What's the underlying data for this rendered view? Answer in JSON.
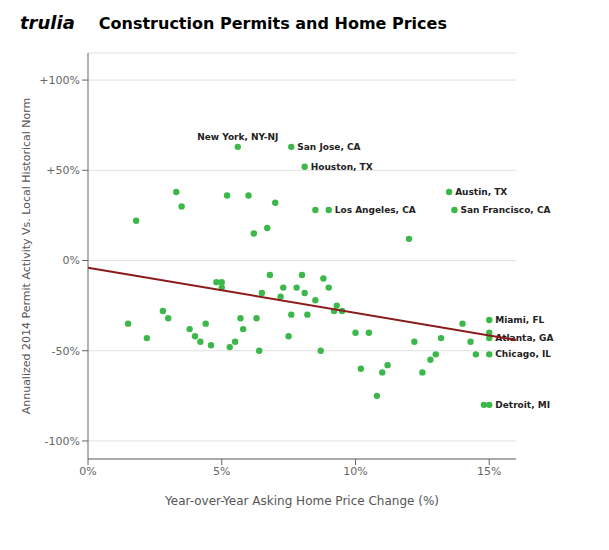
{
  "chart_data": {
    "type": "scatter",
    "title": "Construction Permits and Home Prices",
    "annotations": [
      "trulia"
    ],
    "x_label": "Year-over-Year Asking Home Price Change (%)",
    "y_label": "Annualized 2014 Permit Activity Vs. Local Historical Norm",
    "xlim": [
      0.0,
      0.16
    ],
    "ylim": [
      -1.1,
      1.15
    ],
    "xticks": [
      {
        "value": 0.0,
        "label": "0%"
      },
      {
        "value": 0.05,
        "label": "5%"
      },
      {
        "value": 0.1,
        "label": "10%"
      },
      {
        "value": 0.15,
        "label": "15%"
      }
    ],
    "yticks": [
      {
        "value": -1.0,
        "label": "-100%"
      },
      {
        "value": -0.5,
        "label": "-50%"
      },
      {
        "value": 0.0,
        "label": "0%"
      },
      {
        "value": 0.5,
        "label": "+50%"
      },
      {
        "value": 1.0,
        "label": "+100%"
      }
    ],
    "grid": "y",
    "series": [
      {
        "type": "scatter",
        "color": "#3cb84a",
        "marker": "circle",
        "x": [
          0.015,
          0.018,
          0.022,
          0.028,
          0.03,
          0.033,
          0.035,
          0.038,
          0.04,
          0.042,
          0.044,
          0.046,
          0.048,
          0.05,
          0.05,
          0.052,
          0.053,
          0.055,
          0.057,
          0.058,
          0.06,
          0.062,
          0.063,
          0.064,
          0.065,
          0.067,
          0.068,
          0.07,
          0.072,
          0.073,
          0.075,
          0.076,
          0.078,
          0.08,
          0.081,
          0.082,
          0.085,
          0.085,
          0.087,
          0.088,
          0.09,
          0.092,
          0.093,
          0.095,
          0.1,
          0.102,
          0.105,
          0.108,
          0.11,
          0.112,
          0.12,
          0.122,
          0.125,
          0.128,
          0.13,
          0.132,
          0.14,
          0.143,
          0.145,
          0.148,
          0.15
        ],
        "values": [
          -0.35,
          0.22,
          -0.43,
          -0.28,
          -0.32,
          0.38,
          0.3,
          -0.38,
          -0.42,
          -0.45,
          -0.35,
          -0.47,
          -0.12,
          -0.15,
          -0.12,
          0.36,
          -0.48,
          -0.45,
          -0.32,
          -0.38,
          0.36,
          0.15,
          -0.32,
          -0.5,
          -0.18,
          0.18,
          -0.08,
          0.32,
          -0.2,
          -0.15,
          -0.42,
          -0.3,
          -0.15,
          -0.08,
          -0.18,
          -0.3,
          -0.22,
          0.28,
          -0.5,
          -0.1,
          -0.15,
          -0.28,
          -0.25,
          -0.28,
          -0.4,
          -0.6,
          -0.4,
          -0.75,
          -0.62,
          -0.58,
          0.12,
          -0.45,
          -0.62,
          -0.55,
          -0.52,
          -0.43,
          -0.35,
          -0.45,
          -0.52,
          -0.8,
          -0.4
        ]
      },
      {
        "type": "scatter",
        "color": "#3cb84a",
        "marker": "circle",
        "x": [
          0.056,
          0.076,
          0.081,
          0.09,
          0.135,
          0.137,
          0.15,
          0.15,
          0.15,
          0.15
        ],
        "values": [
          0.63,
          0.63,
          0.52,
          0.28,
          0.38,
          0.28,
          -0.33,
          -0.43,
          -0.52,
          -0.8
        ],
        "labels": [
          "New York, NY-NJ",
          "San Jose, CA",
          "Houston, TX",
          "Los Angeles, CA",
          "Austin, TX",
          "San Francisco, CA",
          "Miami, FL",
          "Atlanta, GA",
          "Chicago, IL",
          "Detroit, MI"
        ]
      },
      {
        "type": "line",
        "color": "#8b1a1a",
        "line_style": "solid",
        "x": [
          0.0,
          0.16
        ],
        "values": [
          -0.04,
          -0.44
        ]
      }
    ]
  }
}
